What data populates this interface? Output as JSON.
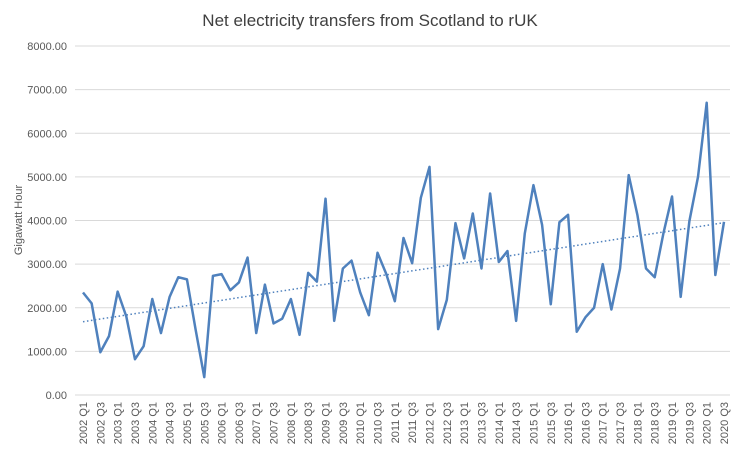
{
  "chart_data": {
    "type": "line",
    "title": "Net electricity transfers from Scotland to rUK",
    "y_label": "Gigawatt Hour",
    "categories": [
      "2002 Q1",
      null,
      "2002 Q3",
      null,
      "2003 Q1",
      null,
      "2003 Q3",
      null,
      "2004 Q1",
      null,
      "2004 Q3",
      null,
      "2005 Q1",
      null,
      "2005 Q3",
      null,
      "2006 Q1",
      null,
      "2006 Q3",
      null,
      "2007 Q1",
      null,
      "2007 Q3",
      null,
      "2008 Q1",
      null,
      "2008 Q3",
      null,
      "2009 Q1",
      null,
      "2009 Q3",
      null,
      "2010 Q1",
      null,
      "2010 Q3",
      null,
      "2011 Q1",
      null,
      "2011 Q3",
      null,
      "2012 Q1",
      null,
      "2012 Q3",
      null,
      "2013 Q1",
      null,
      "2013 Q3",
      null,
      "2014 Q1",
      null,
      "2014 Q3",
      null,
      "2015 Q1",
      null,
      "2015 Q3",
      null,
      "2016 Q1",
      null,
      "2016 Q3",
      null,
      "2017 Q1",
      null,
      "2017 Q3",
      null,
      "2018 Q1",
      null,
      "2018 Q3",
      null,
      "2019 Q1",
      null,
      "2019 Q3",
      null,
      "2020 Q1",
      null,
      "2020 Q3"
    ],
    "values": [
      2350,
      2100,
      980,
      1350,
      2370,
      1800,
      820,
      1120,
      2200,
      1420,
      2250,
      2700,
      2650,
      1500,
      410,
      2730,
      2770,
      2400,
      2580,
      3150,
      1420,
      2530,
      1640,
      1750,
      2200,
      1380,
      2800,
      2600,
      4500,
      1700,
      2900,
      3080,
      2350,
      1830,
      3260,
      2780,
      2150,
      3600,
      3020,
      4520,
      5230,
      1510,
      2180,
      3940,
      3130,
      4160,
      2900,
      4620,
      3050,
      3300,
      1700,
      3700,
      4810,
      3900,
      2080,
      3960,
      4130,
      1450,
      1780,
      2000,
      3000,
      1960,
      2900,
      5040,
      4130,
      2900,
      2700,
      3700,
      4550,
      2250,
      3980,
      5000,
      6700,
      2750,
      3970
    ],
    "color": "#4f81bd",
    "trend": [
      1680,
      3950
    ],
    "ylim": [
      0,
      8000
    ],
    "yticks": [
      {
        "value": 0,
        "label": "0.00"
      },
      {
        "value": 1000,
        "label": "1000.00"
      },
      {
        "value": 2000,
        "label": "2000.00"
      },
      {
        "value": 3000,
        "label": "3000.00"
      },
      {
        "value": 4000,
        "label": "4000.00"
      },
      {
        "value": 5000,
        "label": "5000.00"
      },
      {
        "value": 6000,
        "label": "6000.00"
      },
      {
        "value": 7000,
        "label": "7000.00"
      },
      {
        "value": 8000,
        "label": "8000.00"
      }
    ],
    "grid": true
  }
}
